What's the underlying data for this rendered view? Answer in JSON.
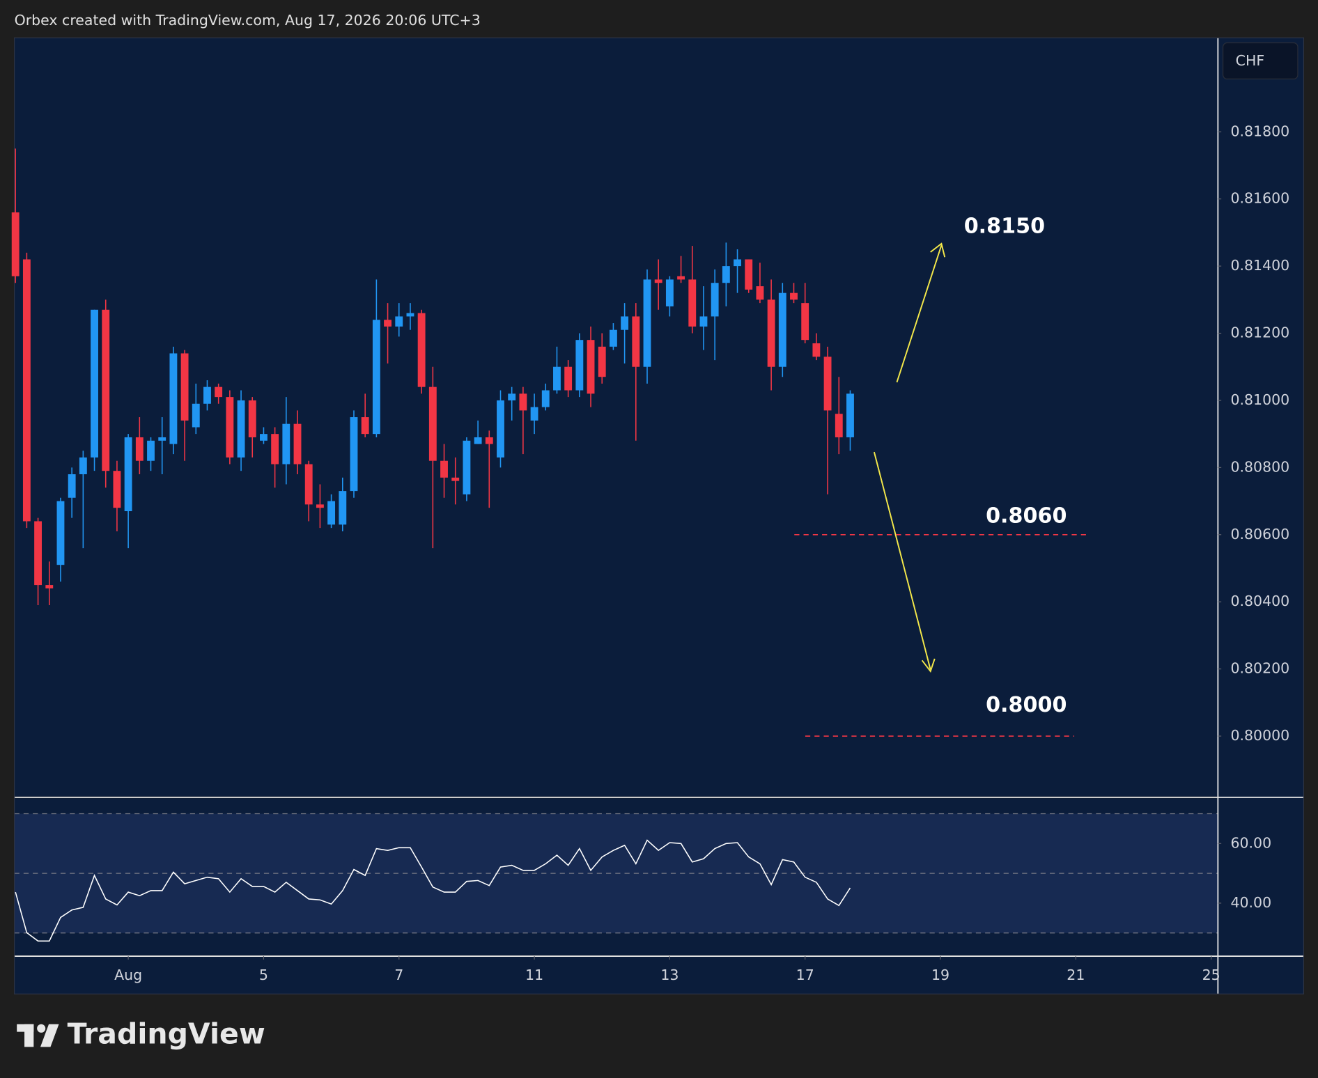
{
  "header": "Orbex created with TradingView.com, Aug 17, 2026 20:06 UTC+3",
  "currency_button": "CHF",
  "logo": "TradingView",
  "chart_data": {
    "type": "candlestick",
    "up_color": "#2196f3",
    "down_color": "#f23645",
    "open": [
      0.8156,
      0.8142,
      0.8064,
      0.8045,
      0.8051,
      0.8071,
      0.8078,
      0.8083,
      0.8127,
      0.8079,
      0.8067,
      0.8089,
      0.8082,
      0.8088,
      0.8087,
      0.8114,
      0.8092,
      0.8099,
      0.8104,
      0.8101,
      0.8083,
      0.81,
      0.8088,
      0.809,
      0.8081,
      0.8093,
      0.8081,
      0.8069,
      0.8063,
      0.8063,
      0.8073,
      0.8095,
      0.809,
      0.8124,
      0.8122,
      0.8125,
      0.8126,
      0.8104,
      0.8082,
      0.8077,
      0.8072,
      0.8087,
      0.8089,
      0.8083,
      0.81,
      0.8102,
      0.8094,
      0.8098,
      0.8103,
      0.811,
      0.8103,
      0.8118,
      0.8116,
      0.8116,
      0.8121,
      0.8125,
      0.811,
      0.8136,
      0.8128,
      0.8137,
      0.8136,
      0.8122,
      0.8125,
      0.8135,
      0.814,
      0.8142,
      0.8134,
      0.813,
      0.811,
      0.8132,
      0.8129,
      0.8117,
      0.8113,
      0.8096,
      0.8089
    ],
    "high": [
      0.8175,
      0.8144,
      0.8065,
      0.8052,
      0.8071,
      0.808,
      0.8085,
      0.8127,
      0.813,
      0.8082,
      0.809,
      0.8095,
      0.8089,
      0.8095,
      0.8116,
      0.8115,
      0.8105,
      0.8106,
      0.8105,
      0.8103,
      0.8103,
      0.8101,
      0.8092,
      0.8092,
      0.8101,
      0.8097,
      0.8082,
      0.8075,
      0.8072,
      0.8077,
      0.8097,
      0.8102,
      0.8136,
      0.8129,
      0.8129,
      0.8129,
      0.8127,
      0.811,
      0.8087,
      0.8083,
      0.8089,
      0.8094,
      0.8091,
      0.8103,
      0.8104,
      0.8104,
      0.8102,
      0.8105,
      0.8116,
      0.8112,
      0.812,
      0.8122,
      0.812,
      0.8123,
      0.8129,
      0.8129,
      0.8139,
      0.8142,
      0.8137,
      0.8143,
      0.8146,
      0.8134,
      0.8139,
      0.8147,
      0.8145,
      0.8142,
      0.8141,
      0.8136,
      0.8135,
      0.8135,
      0.8135,
      0.812,
      0.8116,
      0.8107,
      0.8103
    ],
    "low": [
      0.8135,
      0.8062,
      0.8039,
      0.8039,
      0.8046,
      0.8065,
      0.8056,
      0.8079,
      0.8074,
      0.8061,
      0.8056,
      0.8078,
      0.8079,
      0.8078,
      0.8084,
      0.8082,
      0.809,
      0.8097,
      0.8099,
      0.8081,
      0.8079,
      0.8083,
      0.8087,
      0.8074,
      0.8075,
      0.8078,
      0.8064,
      0.8062,
      0.8062,
      0.8061,
      0.8071,
      0.8089,
      0.8089,
      0.8111,
      0.8119,
      0.8121,
      0.8102,
      0.8056,
      0.8071,
      0.8069,
      0.807,
      0.8087,
      0.8068,
      0.808,
      0.8094,
      0.8084,
      0.809,
      0.8097,
      0.8102,
      0.8101,
      0.8101,
      0.8098,
      0.8105,
      0.8115,
      0.8111,
      0.8088,
      0.8105,
      0.8127,
      0.8125,
      0.8135,
      0.812,
      0.8115,
      0.8112,
      0.8128,
      0.8132,
      0.8132,
      0.8129,
      0.8103,
      0.8107,
      0.8129,
      0.8117,
      0.8112,
      0.8072,
      0.8084,
      0.8085
    ],
    "close": [
      0.8137,
      0.8064,
      0.8045,
      0.8044,
      0.807,
      0.8078,
      0.8083,
      0.8127,
      0.8079,
      0.8068,
      0.8089,
      0.8082,
      0.8088,
      0.8089,
      0.8114,
      0.8094,
      0.8099,
      0.8104,
      0.8101,
      0.8083,
      0.81,
      0.8089,
      0.809,
      0.8081,
      0.8093,
      0.8081,
      0.8069,
      0.8068,
      0.807,
      0.8073,
      0.8095,
      0.809,
      0.8124,
      0.8122,
      0.8125,
      0.8126,
      0.8104,
      0.8082,
      0.8077,
      0.8076,
      0.8088,
      0.8089,
      0.8087,
      0.81,
      0.8102,
      0.8097,
      0.8098,
      0.8103,
      0.811,
      0.8103,
      0.8118,
      0.8102,
      0.8107,
      0.8121,
      0.8125,
      0.811,
      0.8136,
      0.8135,
      0.8136,
      0.8136,
      0.8122,
      0.8125,
      0.8135,
      0.814,
      0.8142,
      0.8133,
      0.813,
      0.811,
      0.8132,
      0.813,
      0.8118,
      0.8113,
      0.8097,
      0.8089,
      0.8102
    ],
    "xlim": [
      -0.1,
      106.6
    ],
    "xticks": [
      {
        "value": 10,
        "label": "Aug"
      },
      {
        "value": 22,
        "label": "5"
      },
      {
        "value": 34,
        "label": "7"
      },
      {
        "value": 46,
        "label": "11"
      },
      {
        "value": 58,
        "label": "13"
      },
      {
        "value": 70,
        "label": "17"
      },
      {
        "value": 82,
        "label": "19"
      },
      {
        "value": 94,
        "label": "21"
      },
      {
        "value": 106,
        "label": "25"
      }
    ],
    "ylim": [
      0.7982,
      0.8208
    ],
    "yticks": [
      {
        "value": 0.818,
        "label": "0.81800"
      },
      {
        "value": 0.816,
        "label": "0.81600"
      },
      {
        "value": 0.814,
        "label": "0.81400"
      },
      {
        "value": 0.812,
        "label": "0.81200"
      },
      {
        "value": 0.81,
        "label": "0.81000"
      },
      {
        "value": 0.808,
        "label": "0.80800"
      },
      {
        "value": 0.806,
        "label": "0.80600"
      },
      {
        "value": 0.804,
        "label": "0.80400"
      },
      {
        "value": 0.802,
        "label": "0.80200"
      },
      {
        "value": 0.8,
        "label": "0.80000"
      }
    ],
    "annotations": [
      {
        "label": "0.8150"
      },
      {
        "label": "0.8060",
        "level": 0.806
      },
      {
        "label": "0.8000",
        "level": 0.8
      }
    ],
    "level_color": "#f23645",
    "arrow_color": "#f5e94a",
    "rsi": {
      "color": "#ffffff",
      "values": [
        43.7,
        30.1,
        27.3,
        27.3,
        35.2,
        37.7,
        38.6,
        49.3,
        41.4,
        39.4,
        43.7,
        42.5,
        44.2,
        44.2,
        50.4,
        46.5,
        47.6,
        48.7,
        48.2,
        43.7,
        48.2,
        45.6,
        45.6,
        43.7,
        47.0,
        44.2,
        41.4,
        41.1,
        39.7,
        44.2,
        51.3,
        49.3,
        58.3,
        57.7,
        58.6,
        58.6,
        52.1,
        45.4,
        43.7,
        43.7,
        47.3,
        47.6,
        45.9,
        52.1,
        52.7,
        51.0,
        51.0,
        53.2,
        56.1,
        52.7,
        58.3,
        51.0,
        55.5,
        57.7,
        59.4,
        53.2,
        61.1,
        57.7,
        60.3,
        60.0,
        53.8,
        54.9,
        58.3,
        60.0,
        60.3,
        55.5,
        53.2,
        46.2,
        54.6,
        53.8,
        48.7,
        47.0,
        41.4,
        39.2,
        45.1
      ],
      "ylim": [
        22.5,
        75.2
      ],
      "yticks": [
        {
          "value": 60,
          "label": "60.00"
        },
        {
          "value": 40,
          "label": "40.00"
        }
      ],
      "levels": [
        70,
        50,
        30
      ]
    }
  }
}
